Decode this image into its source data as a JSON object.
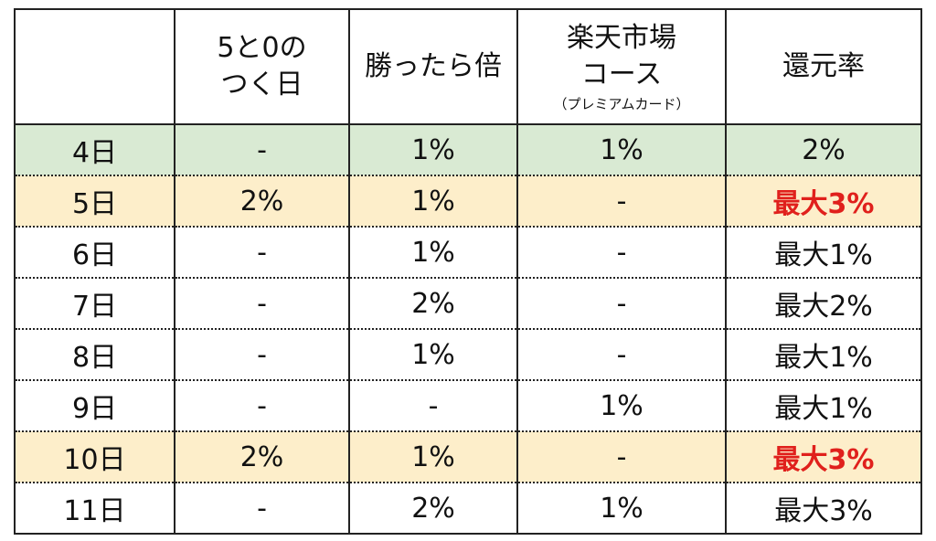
{
  "colors": {
    "row_green": "#d9ead3",
    "row_orange": "#fdeeca",
    "emphasis_red": "#e0201c",
    "border": "#222222"
  },
  "header": {
    "col0": "",
    "col1_line1": "5と0の",
    "col1_line2": "つく日",
    "col2": "勝ったら倍",
    "col3_line1": "楽天市場",
    "col3_line2": "コース",
    "col3_sub": "（プレミアムカード）",
    "col4": "還元率"
  },
  "rows": [
    {
      "day": "4日",
      "five_zero": "-",
      "win_double": "1%",
      "rakuten_course": "1%",
      "rate": "2%",
      "highlight": "green",
      "rate_emphasis": false
    },
    {
      "day": "5日",
      "five_zero": "2%",
      "win_double": "1%",
      "rakuten_course": "-",
      "rate": "最大3%",
      "highlight": "orange",
      "rate_emphasis": true
    },
    {
      "day": "6日",
      "five_zero": "-",
      "win_double": "1%",
      "rakuten_course": "-",
      "rate": "最大1%",
      "highlight": "none",
      "rate_emphasis": false
    },
    {
      "day": "7日",
      "five_zero": "-",
      "win_double": "2%",
      "rakuten_course": "-",
      "rate": "最大2%",
      "highlight": "none",
      "rate_emphasis": false
    },
    {
      "day": "8日",
      "five_zero": "-",
      "win_double": "1%",
      "rakuten_course": "-",
      "rate": "最大1%",
      "highlight": "none",
      "rate_emphasis": false
    },
    {
      "day": "9日",
      "five_zero": "-",
      "win_double": "-",
      "rakuten_course": "1%",
      "rate": "最大1%",
      "highlight": "none",
      "rate_emphasis": false
    },
    {
      "day": "10日",
      "five_zero": "2%",
      "win_double": "1%",
      "rakuten_course": "-",
      "rate": "最大3%",
      "highlight": "orange",
      "rate_emphasis": true
    },
    {
      "day": "11日",
      "five_zero": "-",
      "win_double": "2%",
      "rakuten_course": "1%",
      "rate": "最大3%",
      "highlight": "none",
      "rate_emphasis": false
    }
  ]
}
